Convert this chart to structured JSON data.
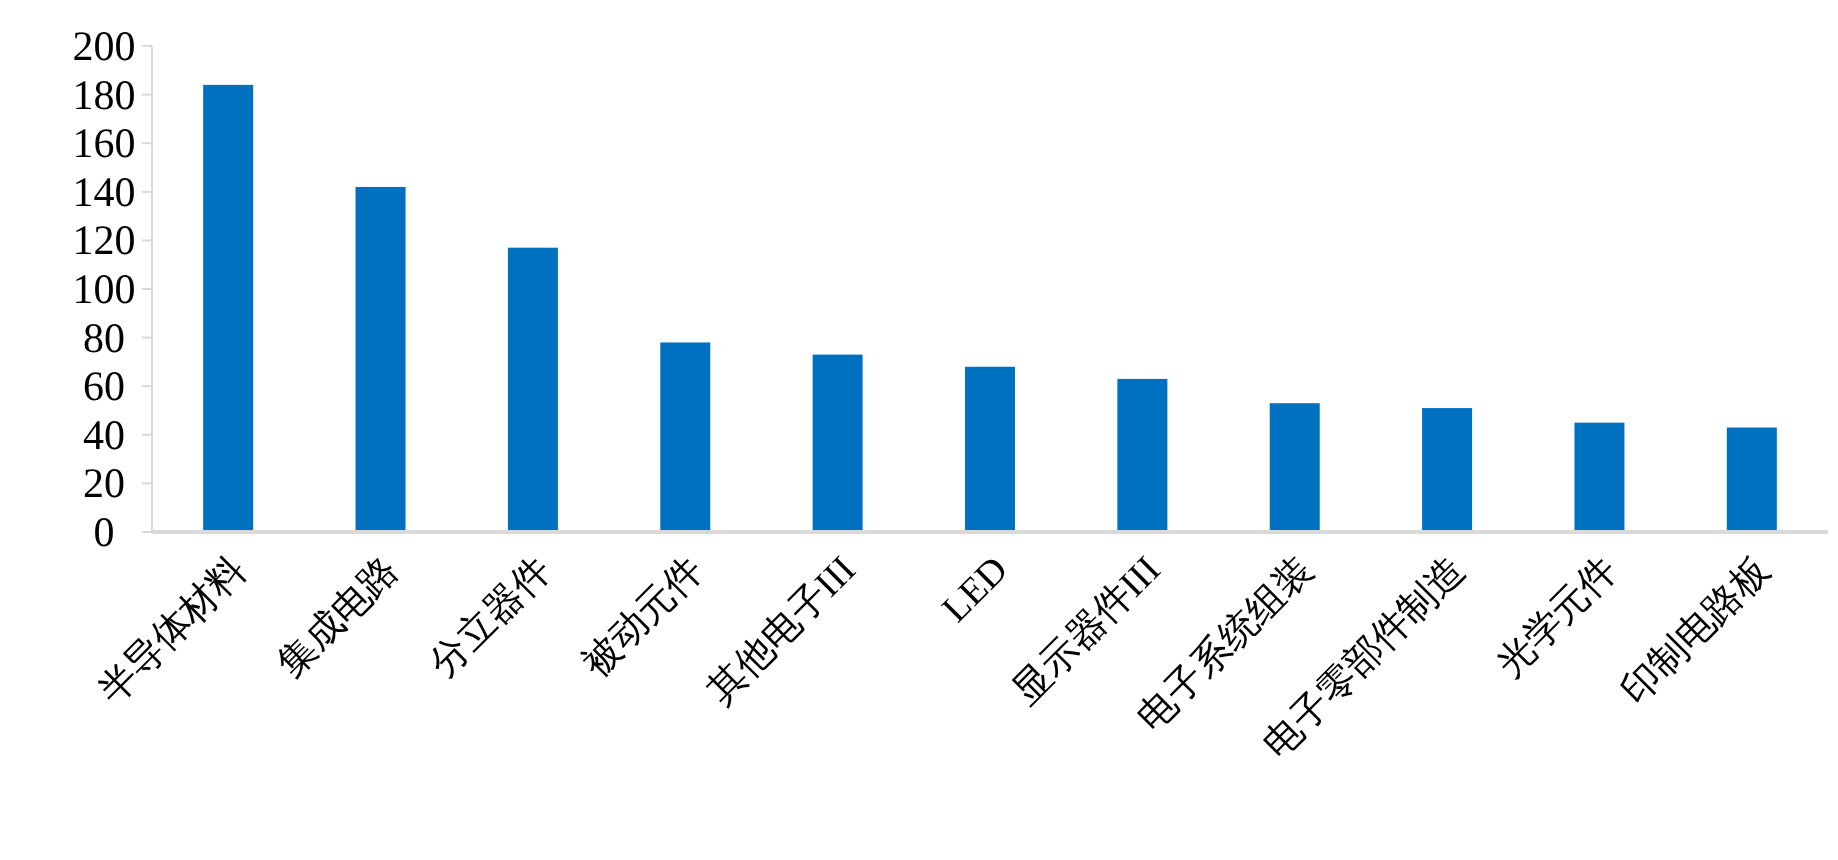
{
  "chart_data": {
    "type": "bar",
    "categories": [
      "半导体材料",
      "集成电路",
      "分立器件",
      "被动元件",
      "其他电子III",
      "LED",
      "显示器件III",
      "电子系统组装",
      "电子零部件制造",
      "光学元件",
      "印制电路板"
    ],
    "values": [
      184,
      142,
      117,
      78,
      73,
      68,
      63,
      53,
      51,
      45,
      43
    ],
    "color": "#0070c0",
    "ylim": [
      0,
      200
    ],
    "yticks": [
      0,
      20,
      40,
      60,
      80,
      100,
      120,
      140,
      160,
      180,
      200
    ],
    "grid": false
  }
}
